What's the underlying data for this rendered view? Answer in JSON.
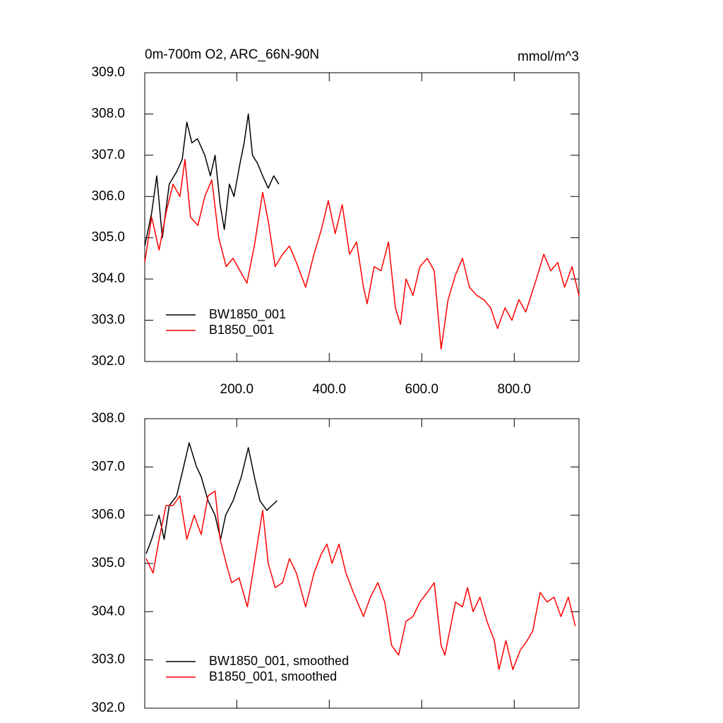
{
  "chart_data": [
    {
      "type": "line",
      "title": "0m-700m O2, ARC_66N-90N",
      "units": "mmol/m^3",
      "xlim": [
        1,
        940
      ],
      "ylim": [
        302,
        309
      ],
      "xticks": [
        {
          "value": 200,
          "label": "200.0"
        },
        {
          "value": 400,
          "label": "400.0"
        },
        {
          "value": 600,
          "label": "600.0"
        },
        {
          "value": 800,
          "label": "800.0"
        }
      ],
      "yticks": [
        {
          "value": 302,
          "label": "302.0"
        },
        {
          "value": 303,
          "label": "303.0"
        },
        {
          "value": 304,
          "label": "304.0"
        },
        {
          "value": 305,
          "label": "305.0"
        },
        {
          "value": 306,
          "label": "306.0"
        },
        {
          "value": 307,
          "label": "307.0"
        },
        {
          "value": 308,
          "label": "308.0"
        },
        {
          "value": 309,
          "label": "309.0"
        }
      ],
      "legend": "lower left",
      "series": [
        {
          "name": "BW1850_001",
          "color": "#000000",
          "x": [
            1,
            16,
            27,
            39,
            54,
            70,
            82,
            92,
            103,
            115,
            131,
            143,
            153,
            164,
            173,
            184,
            194,
            207,
            216,
            225,
            234,
            245,
            256,
            268,
            280,
            291
          ],
          "values": [
            304.8,
            305.6,
            306.5,
            305.0,
            306.3,
            306.6,
            306.9,
            307.8,
            307.3,
            307.4,
            307.0,
            306.5,
            307.0,
            305.8,
            305.2,
            306.3,
            306.0,
            306.8,
            307.3,
            308.0,
            307.0,
            306.8,
            306.5,
            306.2,
            306.5,
            306.3
          ]
        },
        {
          "name": "B1850_001",
          "color": "#ff0000",
          "x": [
            1,
            16,
            32,
            47,
            62,
            77,
            88,
            100,
            116,
            131,
            146,
            161,
            177,
            192,
            207,
            222,
            238,
            256,
            268,
            283,
            299,
            314,
            329,
            349,
            367,
            383,
            398,
            413,
            428,
            444,
            459,
            474,
            482,
            497,
            512,
            528,
            543,
            554,
            566,
            581,
            596,
            612,
            627,
            642,
            657,
            673,
            688,
            703,
            719,
            734,
            749,
            764,
            780,
            795,
            810,
            825,
            848,
            864,
            879,
            894,
            909,
            925,
            940
          ],
          "values": [
            304.4,
            305.5,
            304.7,
            305.6,
            306.3,
            306.0,
            306.9,
            305.5,
            305.3,
            306.0,
            306.4,
            305.0,
            304.3,
            304.5,
            304.2,
            303.9,
            304.8,
            306.1,
            305.4,
            304.3,
            304.6,
            304.8,
            304.4,
            303.8,
            304.6,
            305.2,
            305.9,
            305.1,
            305.8,
            304.6,
            304.9,
            303.8,
            303.4,
            304.3,
            304.2,
            304.9,
            303.3,
            302.9,
            304.0,
            303.6,
            304.3,
            304.5,
            304.2,
            302.3,
            303.5,
            304.1,
            304.5,
            303.8,
            303.6,
            303.5,
            303.3,
            302.8,
            303.3,
            303.0,
            303.5,
            303.2,
            304.0,
            304.6,
            304.2,
            304.4,
            303.8,
            304.3,
            303.6
          ]
        }
      ]
    },
    {
      "type": "line",
      "xlim": [
        1,
        940
      ],
      "ylim": [
        302,
        308
      ],
      "xticks": [
        200,
        400,
        600,
        800
      ],
      "yticks": [
        {
          "value": 302,
          "label": "302.0"
        },
        {
          "value": 303,
          "label": "303.0"
        },
        {
          "value": 304,
          "label": "304.0"
        },
        {
          "value": 305,
          "label": "305.0"
        },
        {
          "value": 306,
          "label": "306.0"
        },
        {
          "value": 307,
          "label": "307.0"
        },
        {
          "value": 308,
          "label": "308.0"
        }
      ],
      "legend": "lower left",
      "series": [
        {
          "name": "BW1850_001, smoothed",
          "color": "#000000",
          "x": [
            4,
            16,
            32,
            43,
            54,
            70,
            85,
            97,
            113,
            123,
            138,
            153,
            165,
            176,
            192,
            210,
            225,
            238,
            250,
            265,
            276,
            287
          ],
          "values": [
            305.2,
            305.5,
            306.0,
            305.5,
            306.2,
            306.4,
            307.0,
            307.5,
            307.0,
            306.8,
            306.3,
            306.0,
            305.5,
            306.0,
            306.3,
            306.8,
            307.4,
            306.8,
            306.3,
            306.1,
            306.2,
            306.3
          ]
        },
        {
          "name": "B1850_001, smoothed",
          "color": "#ff0000",
          "x": [
            4,
            19,
            32,
            47,
            62,
            77,
            92,
            108,
            123,
            138,
            153,
            164,
            177,
            189,
            205,
            223,
            238,
            256,
            268,
            283,
            299,
            314,
            329,
            349,
            367,
            383,
            395,
            406,
            421,
            436,
            452,
            474,
            489,
            505,
            520,
            535,
            550,
            566,
            581,
            596,
            612,
            627,
            642,
            650,
            673,
            688,
            699,
            711,
            726,
            741,
            757,
            767,
            782,
            797,
            813,
            828,
            840,
            856,
            871,
            886,
            901,
            917,
            932
          ],
          "values": [
            305.1,
            304.8,
            305.5,
            306.2,
            306.2,
            306.4,
            305.5,
            306.0,
            305.6,
            306.4,
            306.5,
            305.5,
            305.0,
            304.6,
            304.7,
            304.1,
            305.0,
            306.1,
            305.0,
            304.5,
            304.6,
            305.1,
            304.8,
            304.1,
            304.8,
            305.2,
            305.4,
            305.0,
            305.4,
            304.8,
            304.4,
            303.9,
            304.3,
            304.6,
            304.2,
            303.3,
            303.1,
            303.8,
            303.9,
            304.2,
            304.4,
            304.6,
            303.3,
            303.1,
            304.2,
            304.1,
            304.5,
            304.0,
            304.3,
            303.8,
            303.4,
            302.8,
            303.4,
            302.8,
            303.2,
            303.4,
            303.6,
            304.4,
            304.2,
            304.3,
            303.9,
            304.3,
            303.7
          ]
        }
      ]
    }
  ]
}
